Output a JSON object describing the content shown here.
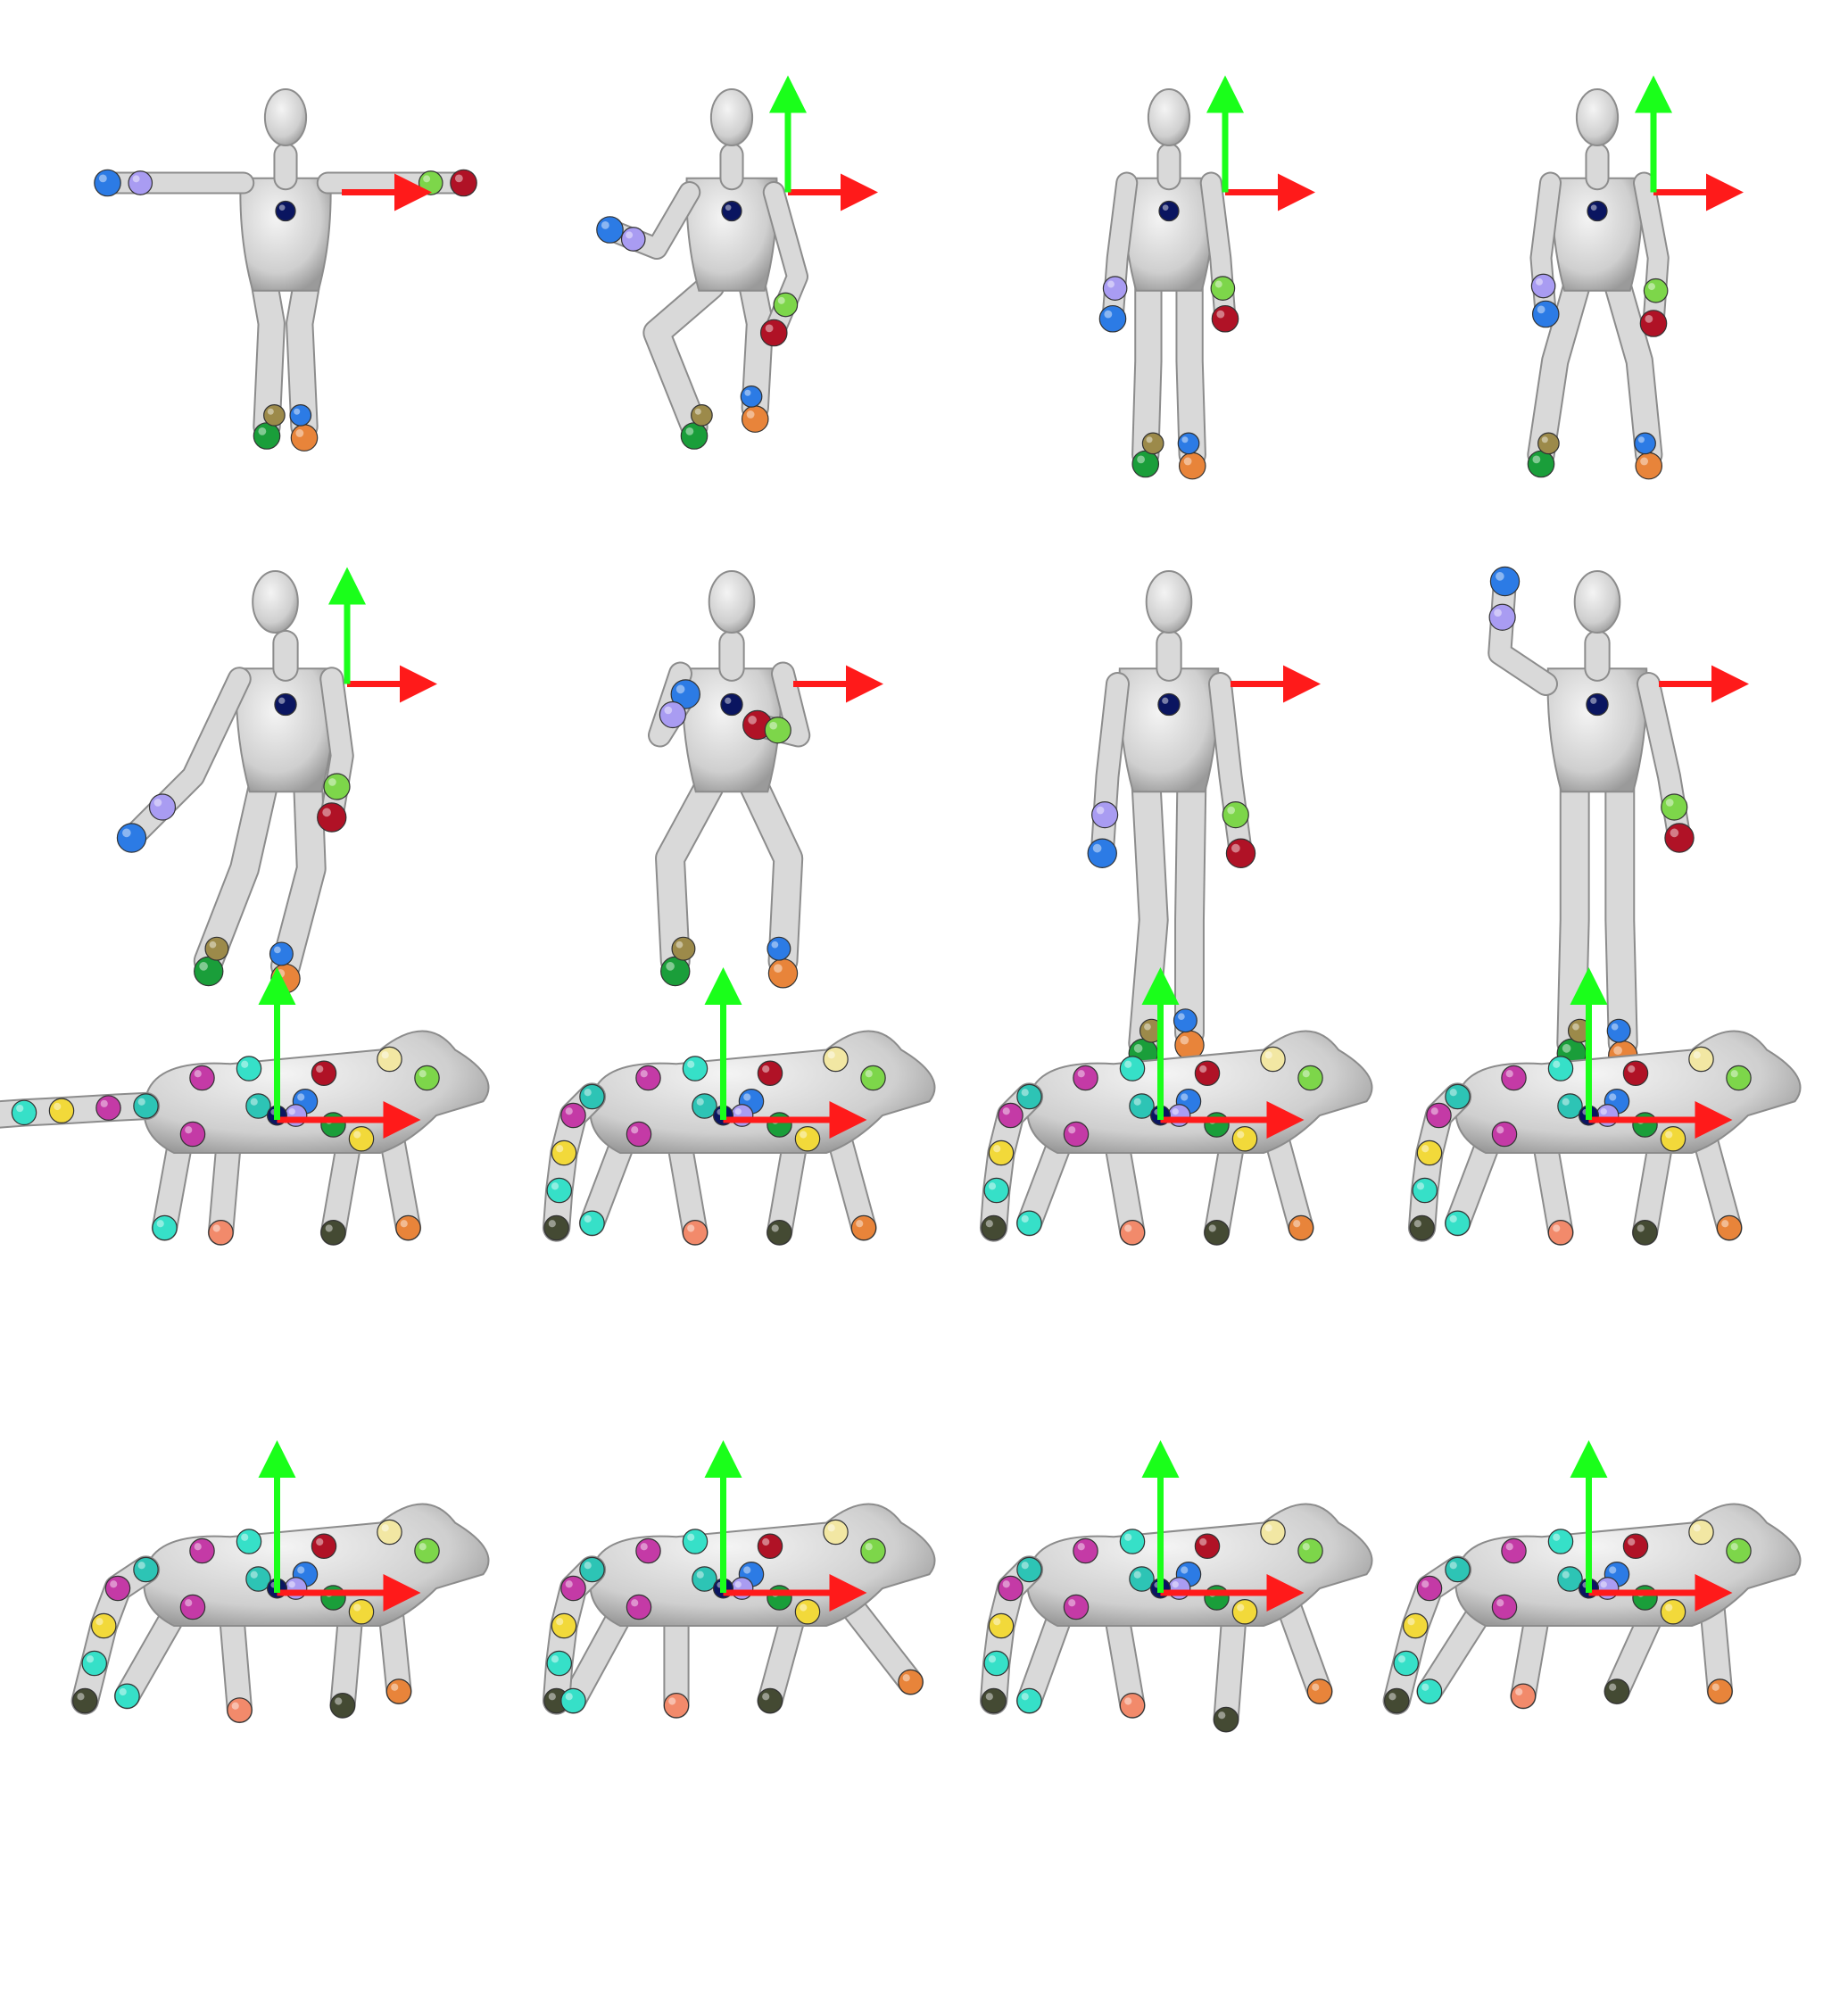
{
  "figure": {
    "description_hidden": false,
    "rows": [
      {
        "kind": "human",
        "panels": [
          {
            "pose": "t-pose"
          },
          {
            "pose": "crouch"
          },
          {
            "pose": "stand"
          },
          {
            "pose": "bend"
          }
        ]
      },
      {
        "kind": "human",
        "panels": [
          {
            "pose": "reach"
          },
          {
            "pose": "squat"
          },
          {
            "pose": "look"
          },
          {
            "pose": "wave"
          }
        ]
      },
      {
        "kind": "wolf",
        "panels": [
          {
            "pose": "tail-out"
          },
          {
            "pose": "tail-down"
          },
          {
            "pose": "tail-down"
          },
          {
            "pose": "tail-down"
          }
        ]
      },
      {
        "kind": "wolf",
        "panels": [
          {
            "pose": "walk"
          },
          {
            "pose": "stride"
          },
          {
            "pose": "crouch"
          },
          {
            "pose": "prowl"
          }
        ]
      }
    ],
    "colors": {
      "mesh": "#d9d9d9",
      "mesh_stroke": "#8c8c8c",
      "axis_x": "#ff1a1a",
      "axis_y": "#1aff1a",
      "root": "#0a1560",
      "keypoints": [
        "#2c7be5",
        "#a99cf2",
        "#1a9e3a",
        "#e8843a",
        "#b01226",
        "#7dd64a",
        "#9c8a4a",
        "#2dc4b5",
        "#c43aa6",
        "#f2d93a",
        "#36e0c8",
        "#444a33",
        "#f28a6b",
        "#f2e7a3",
        "#8a2bb3",
        "#a6f2d6"
      ]
    }
  }
}
